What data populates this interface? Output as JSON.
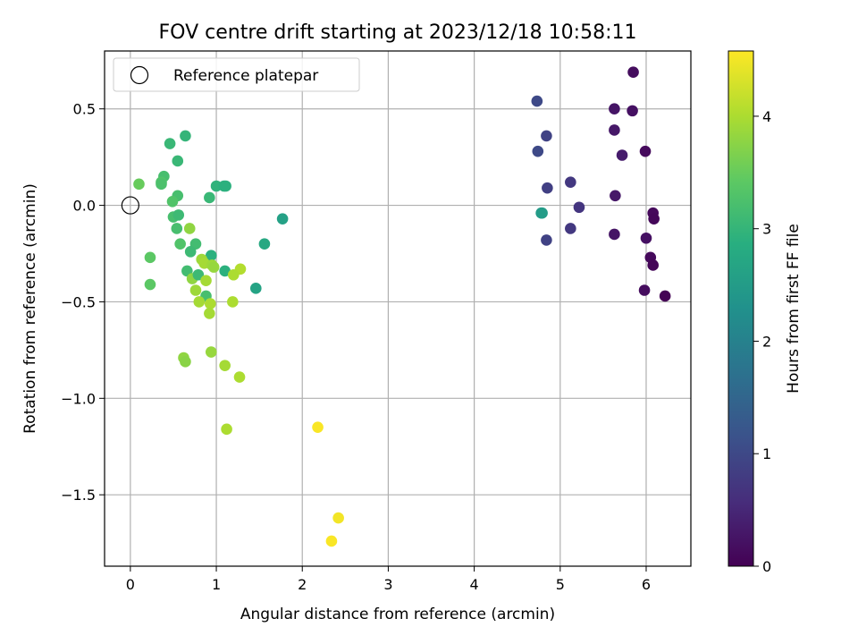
{
  "chart_data": {
    "type": "scatter",
    "title": "FOV centre drift starting at 2023/12/18 10:58:11",
    "xlabel": "Angular distance from reference (arcmin)",
    "ylabel": "Rotation from reference (arcmin)",
    "xlim": [
      -0.3,
      6.52
    ],
    "ylim": [
      -1.87,
      0.8
    ],
    "xticks": [
      0,
      1,
      2,
      3,
      4,
      5,
      6
    ],
    "yticks": [
      0.5,
      0.0,
      -0.5,
      -1.0,
      -1.5
    ],
    "xtick_labels": [
      "0",
      "1",
      "2",
      "3",
      "4",
      "5",
      "6"
    ],
    "ytick_labels": [
      "0.5",
      "0.0",
      "−0.5",
      "−1.0",
      "−1.5"
    ],
    "grid": true,
    "legend": {
      "placement": "upper left",
      "label": "Reference platepar"
    },
    "reference_point": {
      "x": 0.0,
      "y": 0.0
    },
    "colorbar": {
      "label": "Hours from first FF file",
      "range": [
        0,
        4.58
      ],
      "ticks": [
        0,
        1,
        2,
        3,
        4
      ],
      "tick_labels": [
        "0",
        "1",
        "2",
        "3",
        "4"
      ],
      "colormap": "viridis"
    },
    "series": [
      {
        "points": [
          {
            "x": 5.85,
            "y": 0.69,
            "c": 0.15
          },
          {
            "x": 5.63,
            "y": 0.5,
            "c": 0.25
          },
          {
            "x": 5.84,
            "y": 0.49,
            "c": 0.2
          },
          {
            "x": 5.63,
            "y": 0.39,
            "c": 0.3
          },
          {
            "x": 5.99,
            "y": 0.28,
            "c": 0.12
          },
          {
            "x": 5.72,
            "y": 0.26,
            "c": 0.35
          },
          {
            "x": 5.64,
            "y": 0.05,
            "c": 0.3
          },
          {
            "x": 6.08,
            "y": -0.04,
            "c": 0.1
          },
          {
            "x": 6.09,
            "y": -0.07,
            "c": 0.08
          },
          {
            "x": 5.63,
            "y": -0.15,
            "c": 0.25
          },
          {
            "x": 6.0,
            "y": -0.17,
            "c": 0.2
          },
          {
            "x": 6.05,
            "y": -0.27,
            "c": 0.1
          },
          {
            "x": 6.08,
            "y": -0.31,
            "c": 0.05
          },
          {
            "x": 5.98,
            "y": -0.44,
            "c": 0.15
          },
          {
            "x": 6.22,
            "y": -0.47,
            "c": 0.02
          },
          {
            "x": 4.73,
            "y": 0.54,
            "c": 1.0
          },
          {
            "x": 4.84,
            "y": 0.36,
            "c": 0.9
          },
          {
            "x": 4.74,
            "y": 0.28,
            "c": 1.0
          },
          {
            "x": 5.12,
            "y": 0.12,
            "c": 0.75
          },
          {
            "x": 4.85,
            "y": 0.09,
            "c": 0.85
          },
          {
            "x": 5.22,
            "y": -0.01,
            "c": 0.7
          },
          {
            "x": 4.78,
            "y": -0.04,
            "c": 2.45
          },
          {
            "x": 4.79,
            "y": -0.04,
            "c": 2.5
          },
          {
            "x": 5.12,
            "y": -0.12,
            "c": 0.75
          },
          {
            "x": 4.84,
            "y": -0.18,
            "c": 0.9
          },
          {
            "x": 0.1,
            "y": 0.11,
            "c": 3.5
          },
          {
            "x": 0.64,
            "y": 0.36,
            "c": 3.0
          },
          {
            "x": 0.46,
            "y": 0.32,
            "c": 3.05
          },
          {
            "x": 0.55,
            "y": 0.23,
            "c": 3.05
          },
          {
            "x": 0.39,
            "y": 0.15,
            "c": 3.2
          },
          {
            "x": 0.36,
            "y": 0.12,
            "c": 3.3
          },
          {
            "x": 0.36,
            "y": 0.11,
            "c": 3.25
          },
          {
            "x": 1.0,
            "y": 0.1,
            "c": 2.95
          },
          {
            "x": 1.09,
            "y": 0.1,
            "c": 2.9
          },
          {
            "x": 1.11,
            "y": 0.1,
            "c": 2.9
          },
          {
            "x": 0.55,
            "y": 0.05,
            "c": 3.2
          },
          {
            "x": 0.92,
            "y": 0.04,
            "c": 3.05
          },
          {
            "x": 0.49,
            "y": 0.02,
            "c": 3.3
          },
          {
            "x": 0.5,
            "y": -0.06,
            "c": 3.2
          },
          {
            "x": 0.56,
            "y": -0.05,
            "c": 3.1
          },
          {
            "x": 1.77,
            "y": -0.07,
            "c": 2.6
          },
          {
            "x": 0.54,
            "y": -0.12,
            "c": 3.2
          },
          {
            "x": 0.69,
            "y": -0.12,
            "c": 3.8
          },
          {
            "x": 0.58,
            "y": -0.2,
            "c": 3.3
          },
          {
            "x": 0.76,
            "y": -0.2,
            "c": 3.15
          },
          {
            "x": 1.56,
            "y": -0.2,
            "c": 2.75
          },
          {
            "x": 0.7,
            "y": -0.24,
            "c": 3.1
          },
          {
            "x": 0.94,
            "y": -0.26,
            "c": 2.9
          },
          {
            "x": 0.23,
            "y": -0.27,
            "c": 3.4
          },
          {
            "x": 0.83,
            "y": -0.28,
            "c": 3.9
          },
          {
            "x": 0.86,
            "y": -0.3,
            "c": 3.95
          },
          {
            "x": 0.95,
            "y": -0.31,
            "c": 3.9
          },
          {
            "x": 0.97,
            "y": -0.32,
            "c": 3.85
          },
          {
            "x": 0.66,
            "y": -0.34,
            "c": 3.15
          },
          {
            "x": 1.28,
            "y": -0.33,
            "c": 4.05
          },
          {
            "x": 1.1,
            "y": -0.34,
            "c": 2.9
          },
          {
            "x": 0.72,
            "y": -0.38,
            "c": 3.8
          },
          {
            "x": 0.79,
            "y": -0.36,
            "c": 3.1
          },
          {
            "x": 0.88,
            "y": -0.39,
            "c": 3.95
          },
          {
            "x": 1.2,
            "y": -0.36,
            "c": 4.0
          },
          {
            "x": 0.23,
            "y": -0.41,
            "c": 3.4
          },
          {
            "x": 1.46,
            "y": -0.43,
            "c": 2.65
          },
          {
            "x": 0.76,
            "y": -0.44,
            "c": 3.9
          },
          {
            "x": 0.88,
            "y": -0.47,
            "c": 3.2
          },
          {
            "x": 0.8,
            "y": -0.5,
            "c": 3.95
          },
          {
            "x": 0.93,
            "y": -0.51,
            "c": 4.0
          },
          {
            "x": 1.19,
            "y": -0.5,
            "c": 4.0
          },
          {
            "x": 0.92,
            "y": -0.56,
            "c": 3.95
          },
          {
            "x": 0.62,
            "y": -0.79,
            "c": 3.8
          },
          {
            "x": 0.64,
            "y": -0.81,
            "c": 3.75
          },
          {
            "x": 0.94,
            "y": -0.76,
            "c": 3.85
          },
          {
            "x": 1.1,
            "y": -0.83,
            "c": 3.95
          },
          {
            "x": 1.27,
            "y": -0.89,
            "c": 4.0
          },
          {
            "x": 1.12,
            "y": -1.16,
            "c": 4.0
          },
          {
            "x": 2.18,
            "y": -1.15,
            "c": 4.55
          },
          {
            "x": 2.42,
            "y": -1.62,
            "c": 4.5
          },
          {
            "x": 2.34,
            "y": -1.74,
            "c": 4.55
          }
        ]
      }
    ]
  }
}
